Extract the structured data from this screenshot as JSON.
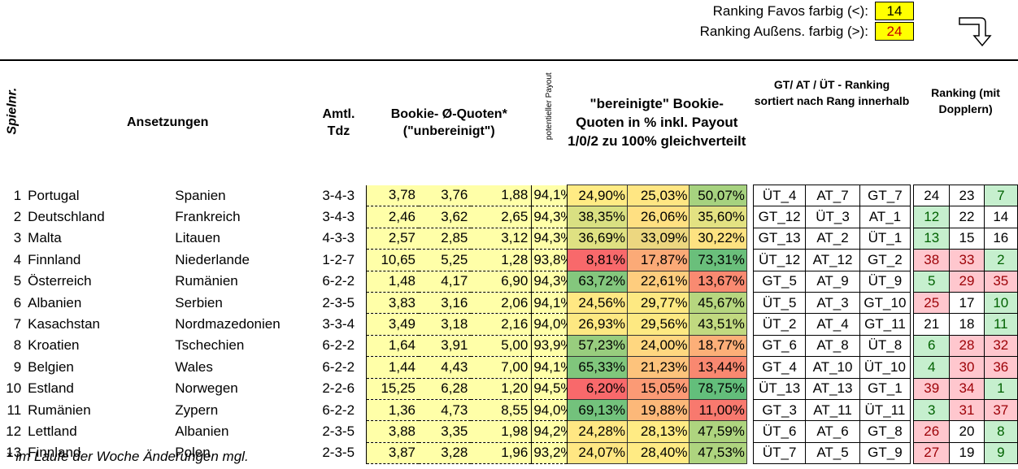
{
  "legend": {
    "favos_label": "Ranking Favos farbig (<):",
    "favos_value": "14",
    "aussen_label": "Ranking Außens. farbig (>):",
    "aussen_value": "24"
  },
  "headers": {
    "spielnr": "Spielnr.",
    "ansetzungen": "Ansetzungen",
    "tdz": "Amtl. Tdz",
    "bookie": "Bookie- Ø-Quoten* (\"unbereinigt\")",
    "payout": "potentieller Payout",
    "bereinigt": "\"bereinigte\" Bookie-Quoten in % inkl. Payout 1/0/2 zu 100% gleichverteilt",
    "gt_ranking": "GT/ AT / ÜT - Ranking sortiert nach Rang innerhalb",
    "ranking": "Ranking (mit Dopplern)"
  },
  "rows": [
    {
      "nr": "1",
      "home": "Portugal",
      "away": "Spanien",
      "tdz": "3-4-3",
      "q1": "3,78",
      "q0": "3,76",
      "q2": "1,88",
      "payout": "94,1%",
      "p1": "24,90%",
      "p0": "25,03%",
      "p2": "50,07%",
      "c1": "#ffeb84",
      "c0": "#ffe683",
      "c2": "#a6d27f",
      "g1": "ÜT_4",
      "g0": "AT_7",
      "g2": "GT_7",
      "r1": "24",
      "r0": "23",
      "r2": "7",
      "rc1": "#ffffff",
      "rc0": "#ffffff",
      "rc2": "#c6efce"
    },
    {
      "nr": "2",
      "home": "Deutschland",
      "away": "Frankreich",
      "tdz": "3-4-3",
      "q1": "2,46",
      "q0": "3,62",
      "q2": "2,65",
      "payout": "94,3%",
      "p1": "38,35%",
      "p0": "26,06%",
      "p2": "35,60%",
      "c1": "#d9e082",
      "c0": "#ffe082",
      "c2": "#e3e282",
      "g1": "GT_12",
      "g0": "ÜT_3",
      "g2": "AT_1",
      "r1": "12",
      "r0": "22",
      "r2": "14",
      "rc1": "#c6efce",
      "rc0": "#ffffff",
      "rc2": "#ffffff"
    },
    {
      "nr": "3",
      "home": "Malta",
      "away": "Litauen",
      "tdz": "4-3-3",
      "q1": "2,57",
      "q0": "2,85",
      "q2": "3,12",
      "payout": "94,3%",
      "p1": "36,69%",
      "p0": "33,09%",
      "p2": "30,22%",
      "c1": "#dfe182",
      "c0": "#ecd780",
      "c2": "#fde281",
      "g1": "GT_13",
      "g0": "AT_2",
      "g2": "ÜT_1",
      "r1": "13",
      "r0": "15",
      "r2": "16",
      "rc1": "#c6efce",
      "rc0": "#ffffff",
      "rc2": "#ffffff"
    },
    {
      "nr": "4",
      "home": "Finnland",
      "away": "Niederlande",
      "tdz": "1-2-7",
      "q1": "10,65",
      "q0": "5,25",
      "q2": "1,28",
      "payout": "93,8%",
      "p1": "8,81%",
      "p0": "17,87%",
      "p2": "73,31%",
      "c1": "#f8696b",
      "c0": "#fbaa77",
      "c2": "#6abf7b",
      "g1": "ÜT_12",
      "g0": "AT_12",
      "g2": "GT_2",
      "r1": "38",
      "r0": "33",
      "r2": "2",
      "rc1": "#ffc7ce",
      "rc0": "#ffc7ce",
      "rc2": "#c6efce"
    },
    {
      "nr": "5",
      "home": "Österreich",
      "away": "Rumänien",
      "tdz": "6-2-2",
      "q1": "1,48",
      "q0": "4,17",
      "q2": "6,90",
      "payout": "94,3%",
      "p1": "63,72%",
      "p0": "22,61%",
      "p2": "13,67%",
      "c1": "#84c77d",
      "c0": "#fecd7e",
      "c2": "#f98a71",
      "g1": "GT_5",
      "g0": "AT_9",
      "g2": "ÜT_9",
      "r1": "5",
      "r0": "29",
      "r2": "35",
      "rc1": "#c6efce",
      "rc0": "#ffc7ce",
      "rc2": "#ffc7ce"
    },
    {
      "nr": "6",
      "home": "Albanien",
      "away": "Serbien",
      "tdz": "2-3-5",
      "q1": "3,83",
      "q0": "3,16",
      "q2": "2,06",
      "payout": "94,1%",
      "p1": "24,56%",
      "p0": "29,77%",
      "p2": "45,67%",
      "c1": "#ffe883",
      "c0": "#fde982",
      "c2": "#b6d67f",
      "g1": "ÜT_5",
      "g0": "AT_3",
      "g2": "GT_10",
      "r1": "25",
      "r0": "17",
      "r2": "10",
      "rc1": "#ffc7ce",
      "rc0": "#ffffff",
      "rc2": "#c6efce"
    },
    {
      "nr": "7",
      "home": "Kasachstan",
      "away": "Nordmazedonien",
      "tdz": "3-3-4",
      "q1": "3,49",
      "q0": "3,18",
      "q2": "2,16",
      "payout": "94,0%",
      "p1": "26,93%",
      "p0": "29,56%",
      "p2": "43,51%",
      "c1": "#fde882",
      "c0": "#fde982",
      "c2": "#c1d980",
      "g1": "ÜT_2",
      "g0": "AT_4",
      "g2": "GT_11",
      "r1": "21",
      "r0": "18",
      "r2": "11",
      "rc1": "#ffffff",
      "rc0": "#ffffff",
      "rc2": "#c6efce"
    },
    {
      "nr": "8",
      "home": "Kroatien",
      "away": "Tschechien",
      "tdz": "6-2-2",
      "q1": "1,64",
      "q0": "3,91",
      "q2": "5,00",
      "payout": "93,9%",
      "p1": "57,23%",
      "p0": "24,00%",
      "p2": "18,77%",
      "c1": "#98cd7e",
      "c0": "#ffd780",
      "c2": "#fcaf78",
      "g1": "GT_6",
      "g0": "AT_8",
      "g2": "ÜT_8",
      "r1": "6",
      "r0": "28",
      "r2": "32",
      "rc1": "#c6efce",
      "rc0": "#ffc7ce",
      "rc2": "#ffc7ce"
    },
    {
      "nr": "9",
      "home": "Belgien",
      "away": "Wales",
      "tdz": "6-2-2",
      "q1": "1,44",
      "q0": "4,43",
      "q2": "7,00",
      "payout": "94,1%",
      "p1": "65,33%",
      "p0": "21,23%",
      "p2": "13,44%",
      "c1": "#80c67c",
      "c0": "#fdc37c",
      "c2": "#f98870",
      "g1": "GT_4",
      "g0": "AT_10",
      "g2": "ÜT_10",
      "r1": "4",
      "r0": "30",
      "r2": "36",
      "rc1": "#c6efce",
      "rc0": "#ffc7ce",
      "rc2": "#ffc7ce"
    },
    {
      "nr": "10",
      "home": "Estland",
      "away": "Norwegen",
      "tdz": "2-2-6",
      "q1": "15,25",
      "q0": "6,28",
      "q2": "1,20",
      "payout": "94,5%",
      "p1": "6,20%",
      "p0": "15,05%",
      "p2": "78,75%",
      "c1": "#f8696b",
      "c0": "#fb9a75",
      "c2": "#63be7b",
      "g1": "ÜT_13",
      "g0": "AT_13",
      "g2": "GT_1",
      "r1": "39",
      "r0": "34",
      "r2": "1",
      "rc1": "#ffc7ce",
      "rc0": "#ffc7ce",
      "rc2": "#c6efce"
    },
    {
      "nr": "11",
      "home": "Rumänien",
      "away": "Zypern",
      "tdz": "6-2-2",
      "q1": "1,36",
      "q0": "4,73",
      "q2": "8,55",
      "payout": "94,0%",
      "p1": "69,13%",
      "p0": "19,88%",
      "p2": "11,00%",
      "c1": "#73c27c",
      "c0": "#fcb879",
      "c2": "#f8796e",
      "g1": "GT_3",
      "g0": "AT_11",
      "g2": "ÜT_11",
      "r1": "3",
      "r0": "31",
      "r2": "37",
      "rc1": "#c6efce",
      "rc0": "#ffc7ce",
      "rc2": "#ffc7ce"
    },
    {
      "nr": "12",
      "home": "Lettland",
      "away": "Albanien",
      "tdz": "2-3-5",
      "q1": "3,88",
      "q0": "3,35",
      "q2": "1,98",
      "payout": "94,2%",
      "p1": "24,28%",
      "p0": "28,13%",
      "p2": "47,59%",
      "c1": "#ffe783",
      "c0": "#ffeb84",
      "c2": "#aed47f",
      "g1": "ÜT_6",
      "g0": "AT_6",
      "g2": "GT_8",
      "r1": "26",
      "r0": "20",
      "r2": "8",
      "rc1": "#ffc7ce",
      "rc0": "#ffffff",
      "rc2": "#c6efce"
    },
    {
      "nr": "13",
      "home": "Finnland",
      "away": "Polen",
      "tdz": "2-3-5",
      "q1": "3,87",
      "q0": "3,28",
      "q2": "1,96",
      "payout": "93,2%",
      "p1": "24,07%",
      "p0": "28,40%",
      "p2": "47,53%",
      "c1": "#ffe783",
      "c0": "#ffeb84",
      "c2": "#aed47f",
      "g1": "ÜT_7",
      "g0": "AT_5",
      "g2": "GT_9",
      "r1": "27",
      "r0": "19",
      "r2": "9",
      "rc1": "#ffc7ce",
      "rc0": "#ffffff",
      "rc2": "#c6efce"
    }
  ],
  "footnote": "* im Laufe der Woche Änderungen mgl."
}
